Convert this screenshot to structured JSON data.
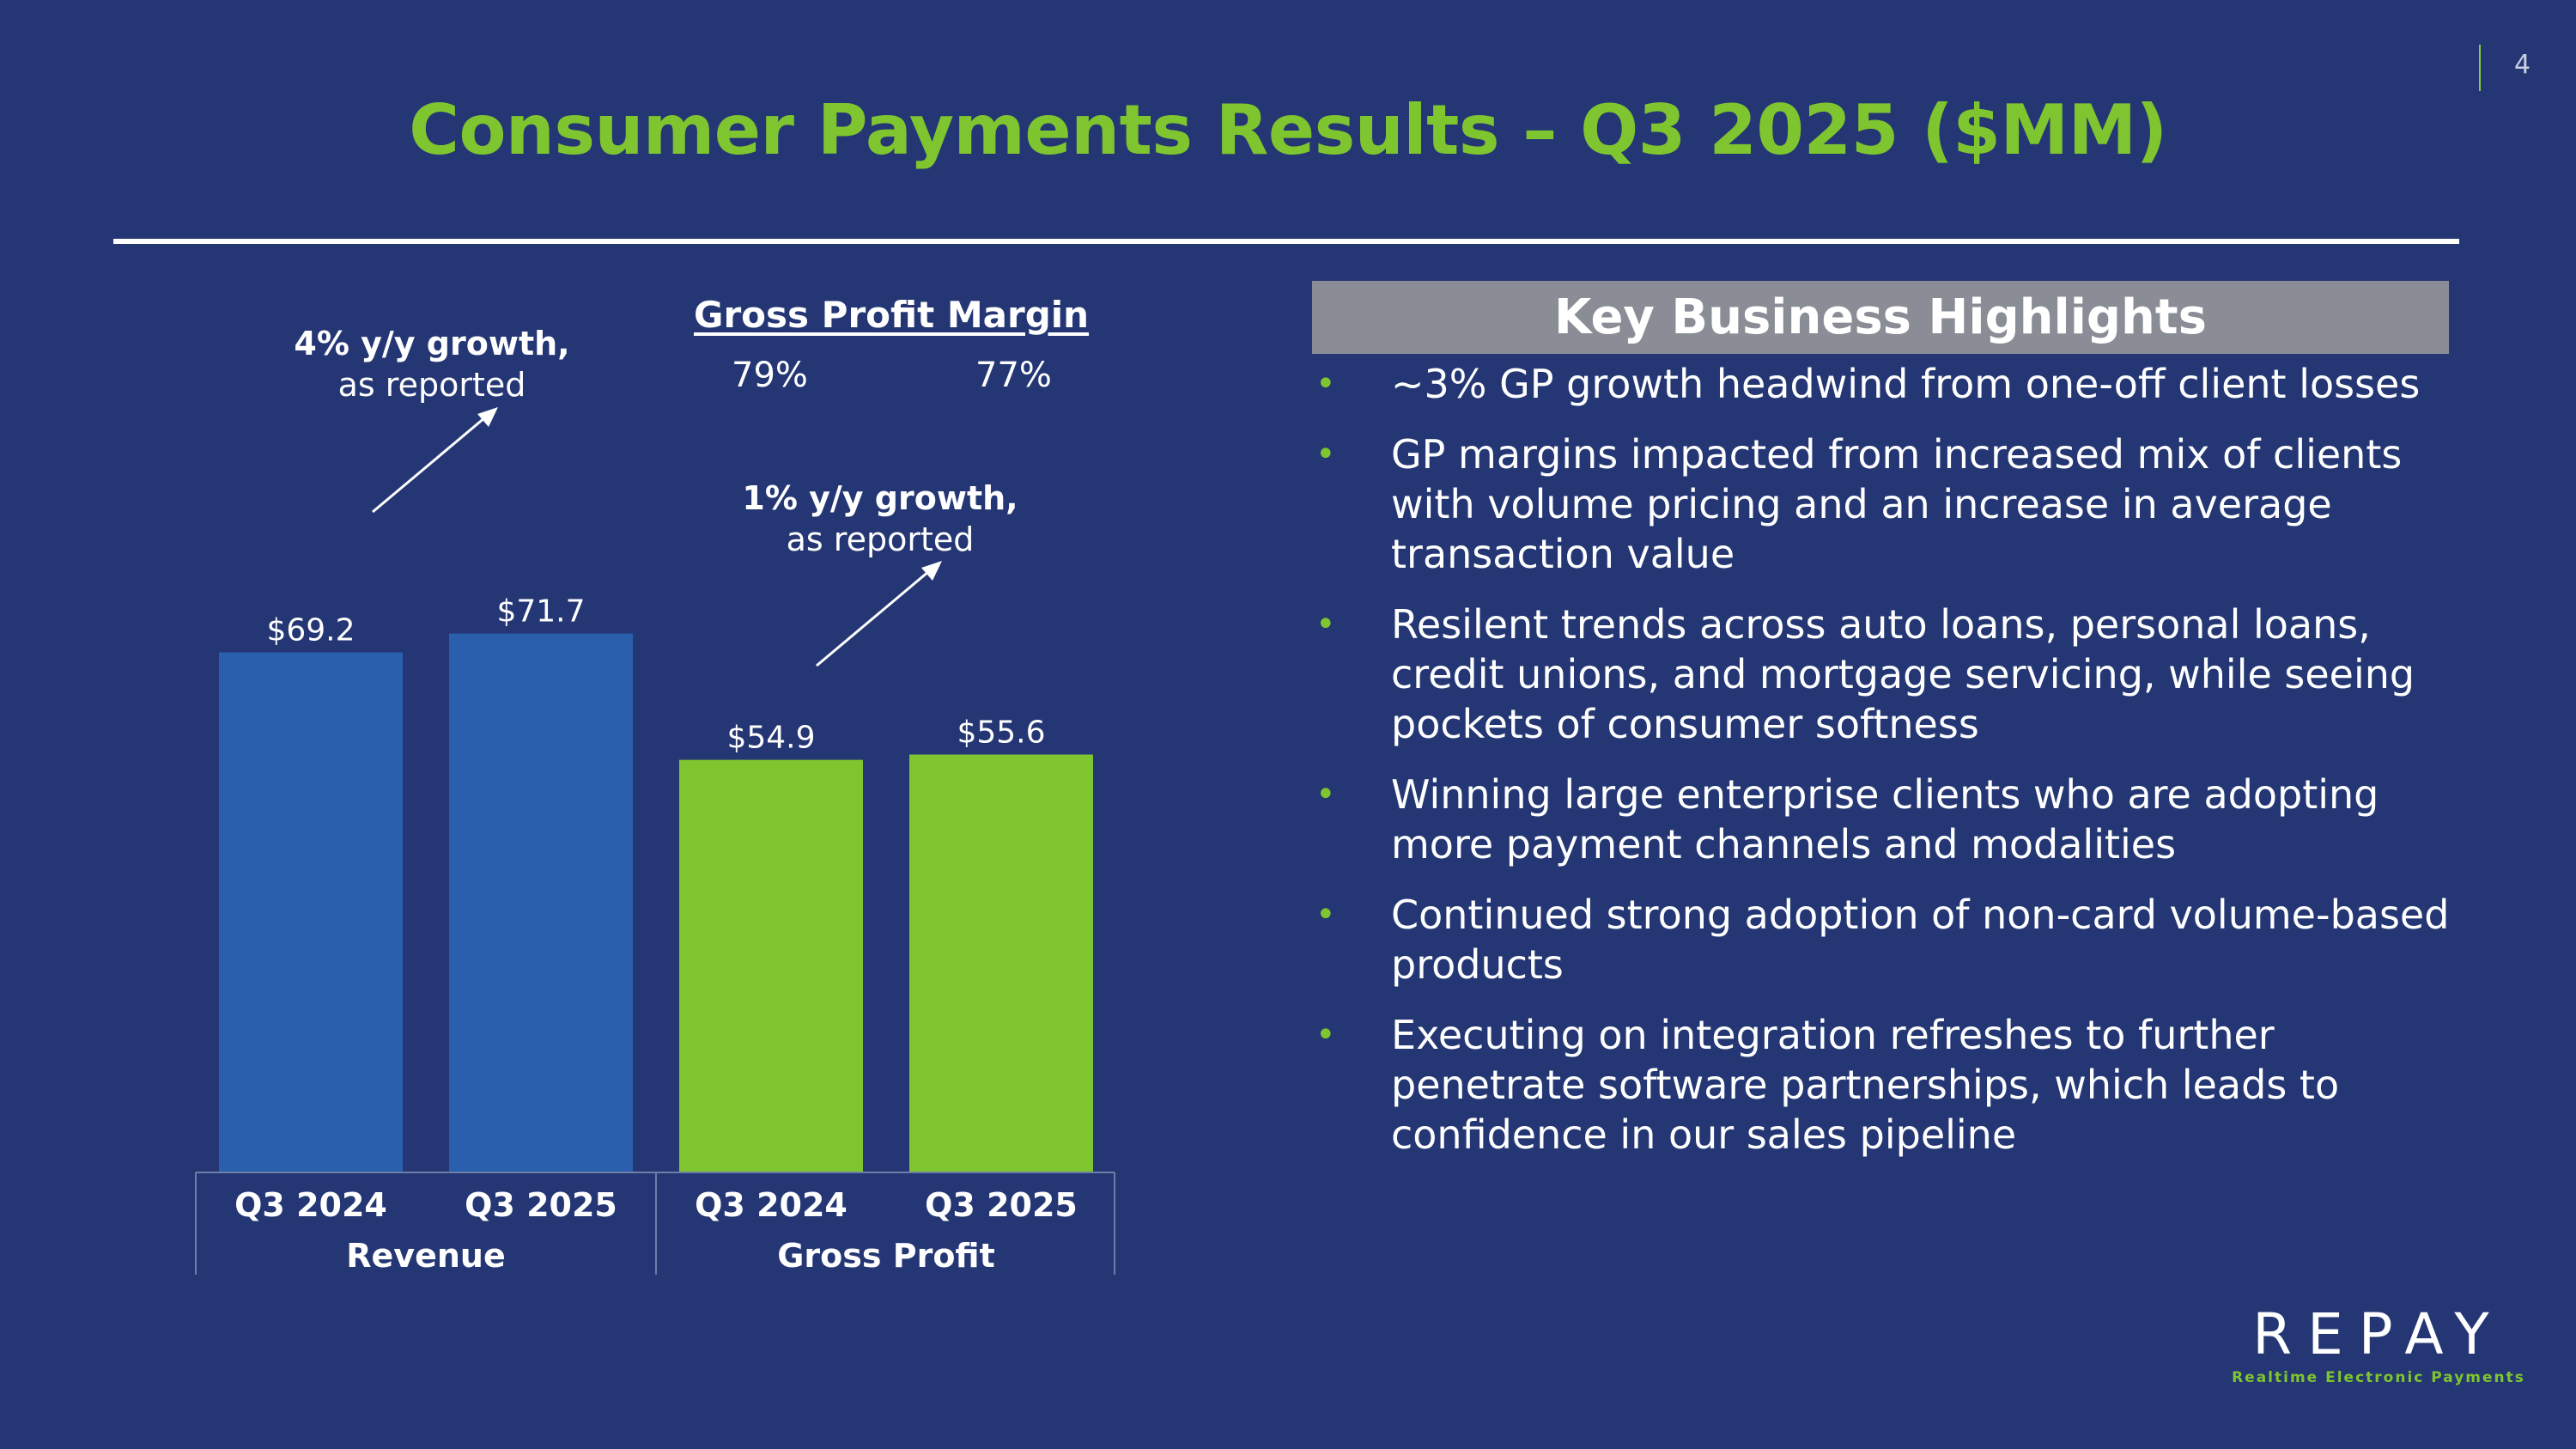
{
  "page": {
    "number": "4",
    "title": "Consumer Payments Results – Q3 2025 ($MM)"
  },
  "annotations": {
    "revenue_growth_bold": "4% y/y growth,",
    "revenue_growth_sub": "as reported",
    "gp_growth_bold": "1% y/y growth,",
    "gp_growth_sub": "as reported",
    "gpm_heading": "Gross Profit Margin",
    "gpm_values": [
      "79%",
      "77%"
    ]
  },
  "chart_data": {
    "type": "bar",
    "categories": [
      "Q3 2024",
      "Q3 2025",
      "Q3 2024",
      "Q3 2025"
    ],
    "groups": [
      "Revenue",
      "Gross Profit"
    ],
    "values": [
      69.2,
      71.7,
      54.9,
      55.6
    ],
    "value_labels": [
      "$69.2",
      "$71.7",
      "$54.9",
      "$55.6"
    ],
    "colors": [
      "#2a5fad",
      "#2a5fad",
      "#7fc52f",
      "#7fc52f"
    ],
    "ylim": [
      0,
      72
    ]
  },
  "highlights": {
    "title": "Key Business Highlights",
    "items": [
      "~3% GP growth headwind from one-off client losses",
      "GP margins impacted from increased mix of clients with volume pricing and an increase in average transaction value",
      "Resilent trends across auto loans, personal loans, credit unions, and mortgage servicing, while seeing pockets of consumer softness",
      "Winning large enterprise clients who are adopting more payment channels and modalities",
      "Continued strong adoption of non-card volume-based products",
      "Executing on integration refreshes to further penetrate software partnerships, which leads to confidence in our sales pipeline"
    ]
  },
  "logo": {
    "wordmark": "REPAY",
    "tagline": "Realtime Electronic Payments"
  },
  "colors": {
    "background": "#243774",
    "accent_green": "#7fc52f",
    "bar_blue": "#2a5fad",
    "header_gray": "#8a8d96"
  }
}
